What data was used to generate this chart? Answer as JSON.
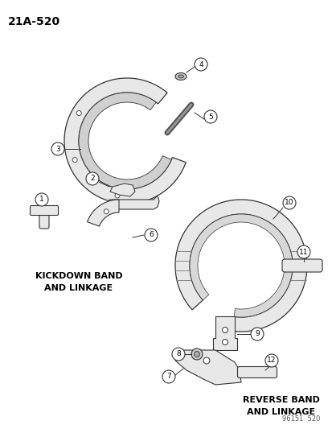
{
  "title": "21A-520",
  "background_color": "#ffffff",
  "text_color": "#000000",
  "kickdown_label": "KICKDOWN BAND\nAND LINKAGE",
  "reverse_label": "REVERSE BAND\nAND LINKAGE",
  "footer": "96151  520",
  "line_color": "#333333",
  "fill_color": "#e8e8e8",
  "fill_light": "#f0f0f0"
}
